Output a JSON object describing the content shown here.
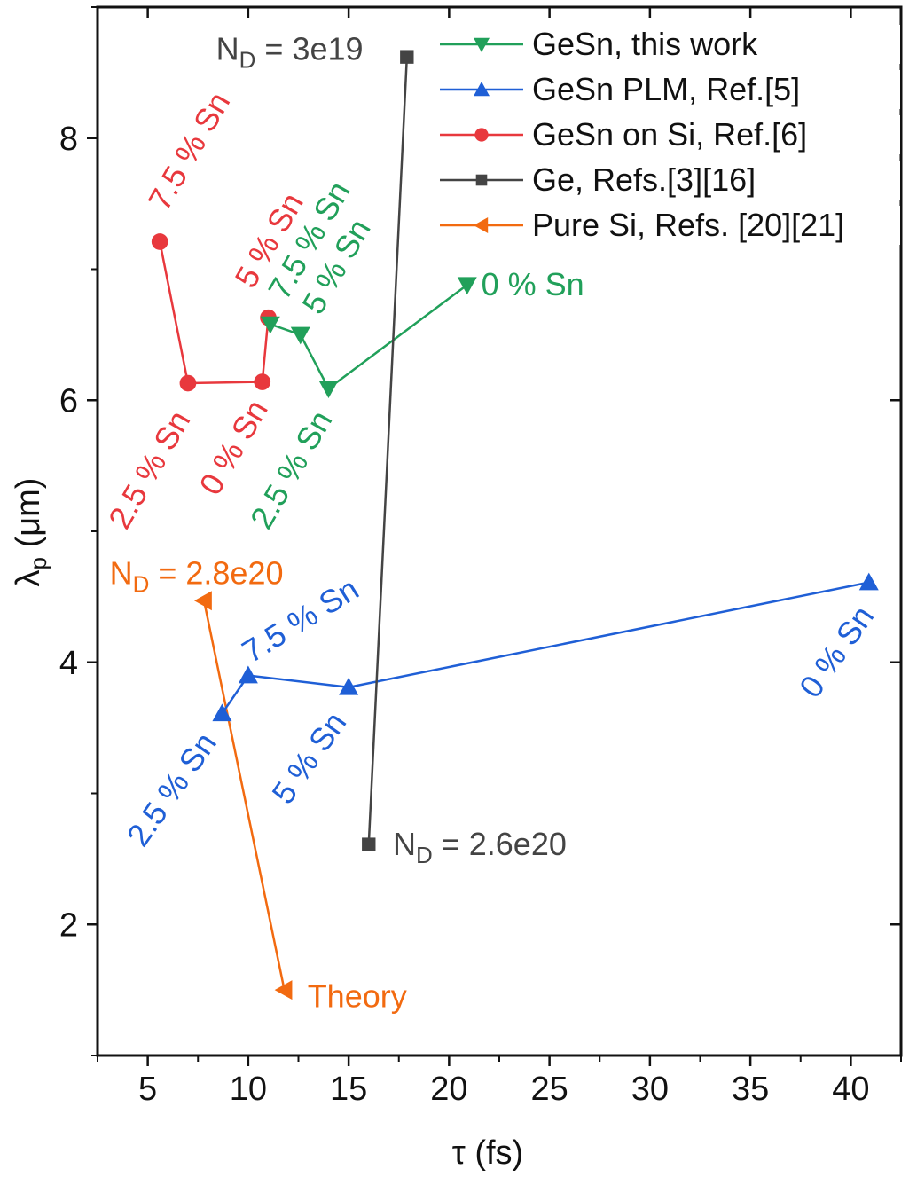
{
  "chart_data": {
    "type": "line",
    "xlabel": "τ (fs)",
    "ylabel": {
      "main": "λ",
      "sub": "p",
      "rest": " (μm)"
    },
    "xlim": [
      2.5,
      42.5
    ],
    "ylim": [
      1,
      9
    ],
    "xticks": [
      5,
      10,
      15,
      20,
      25,
      30,
      35,
      40
    ],
    "yticks": [
      2,
      4,
      6,
      8
    ],
    "grid": false,
    "legend_position": "top-right",
    "series": [
      {
        "name": "GeSn, this work",
        "color": "#21a05a",
        "marker": "triangle-down",
        "x": [
          11.1,
          12.6,
          14.0,
          20.9
        ],
        "y": [
          6.58,
          6.5,
          6.09,
          6.88
        ]
      },
      {
        "name": "GeSn PLM, Ref.[5]",
        "color": "#1f5fd6",
        "marker": "triangle-up",
        "x": [
          8.7,
          10.0,
          15.0,
          40.9
        ],
        "y": [
          3.61,
          3.9,
          3.81,
          4.61
        ]
      },
      {
        "name": "GeSn on Si, Ref.[6]",
        "color": "#e8383d",
        "marker": "circle",
        "x": [
          5.6,
          7.0,
          10.7,
          11.0
        ],
        "y": [
          7.21,
          6.13,
          6.14,
          6.63
        ]
      },
      {
        "name": "Ge, Refs.[3][16]",
        "color": "#444444",
        "marker": "square",
        "x": [
          17.9,
          16.0
        ],
        "y": [
          8.62,
          2.61
        ]
      },
      {
        "name": "Pure Si, Refs. [20][21]",
        "color": "#f26a10",
        "marker": "triangle-left",
        "x": [
          7.8,
          11.8
        ],
        "y": [
          4.47,
          1.5
        ]
      }
    ],
    "annotations": [
      {
        "text": "7.5 % Sn",
        "color": "#e8383d",
        "x": 7.07,
        "y": 7.9
      },
      {
        "text": "5 % Sn",
        "color": "#e8383d",
        "x": 11.05,
        "y": 7.22
      },
      {
        "text": "2.5 % Sn",
        "color": "#e8383d",
        "x": 5.09,
        "y": 5.47
      },
      {
        "text": "0 % Sn",
        "color": "#e8383d",
        "x": 9.28,
        "y": 5.64
      },
      {
        "text": "7.5 % Sn",
        "color": "#21a05a",
        "x": 13.04,
        "y": 7.22
      },
      {
        "text": "5 % Sn",
        "color": "#21a05a",
        "x": 14.4,
        "y": 7.02
      },
      {
        "text": "2.5 % Sn",
        "color": "#21a05a",
        "x": 12.15,
        "y": 5.47
      },
      {
        "text": "0 % Sn",
        "color": "#21a05a",
        "x": 21.6,
        "y": 6.88
      },
      {
        "text": "7.5 % Sn",
        "color": "#1f5fd6",
        "x": 12.6,
        "y": 4.32
      },
      {
        "text": "2.5 % Sn",
        "color": "#1f5fd6",
        "x": 6.2,
        "y": 3.03
      },
      {
        "text": "5 % Sn",
        "color": "#1f5fd6",
        "x": 13.04,
        "y": 3.27
      },
      {
        "text": "0 % Sn",
        "color": "#1f5fd6",
        "x": 39.3,
        "y": 4.08
      },
      {
        "text": "Theory",
        "color": "#f26a10",
        "x": 12.95,
        "y": 1.45
      }
    ],
    "nd_annotations": [
      {
        "main": "N",
        "sub": "D",
        "rest": " = 3e19",
        "color": "#444444",
        "x": 8.4,
        "y": 8.68
      },
      {
        "main": "N",
        "sub": "D",
        "rest": " = 2.6e20",
        "color": "#444444",
        "x": 17.2,
        "y": 2.61
      },
      {
        "main": "N",
        "sub": "D",
        "rest": " = 2.8e20",
        "color": "#f26a10",
        "x": 3.1,
        "y": 4.68
      }
    ]
  }
}
